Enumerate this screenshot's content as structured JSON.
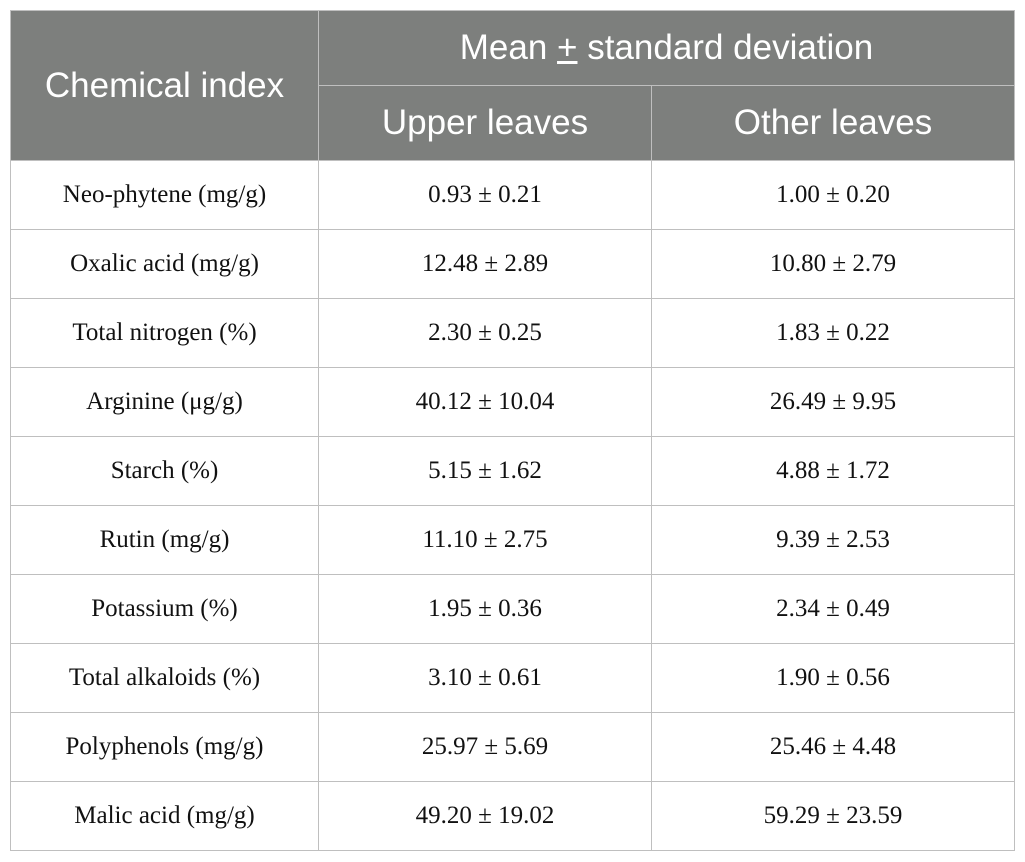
{
  "table": {
    "header": {
      "index_label": "Chemical index",
      "group_prefix": "Mean ",
      "group_pm": "+",
      "group_suffix": " standard deviation",
      "col_upper": "Upper leaves",
      "col_other": "Other leaves"
    },
    "rows": [
      {
        "index": "Neo-phytene (mg/g)",
        "upper": "0.93 ± 0.21",
        "other": "1.00 ± 0.20"
      },
      {
        "index": "Oxalic acid (mg/g)",
        "upper": "12.48 ± 2.89",
        "other": "10.80 ± 2.79"
      },
      {
        "index": "Total nitrogen (%)",
        "upper": "2.30 ± 0.25",
        "other": "1.83 ± 0.22"
      },
      {
        "index": "Arginine (μg/g)",
        "upper": "40.12 ± 10.04",
        "other": "26.49 ± 9.95"
      },
      {
        "index": "Starch (%)",
        "upper": "5.15 ± 1.62",
        "other": "4.88 ± 1.72"
      },
      {
        "index": "Rutin (mg/g)",
        "upper": "11.10 ± 2.75",
        "other": "9.39 ± 2.53"
      },
      {
        "index": "Potassium (%)",
        "upper": "1.95 ± 0.36",
        "other": "2.34 ± 0.49"
      },
      {
        "index": "Total alkaloids (%)",
        "upper": "3.10 ± 0.61",
        "other": "1.90 ± 0.56"
      },
      {
        "index": "Polyphenols (mg/g)",
        "upper": "25.97 ± 5.69",
        "other": "25.46 ± 4.48"
      },
      {
        "index": "Malic acid (mg/g)",
        "upper": "49.20 ± 19.02",
        "other": "59.29 ± 23.59"
      }
    ]
  }
}
